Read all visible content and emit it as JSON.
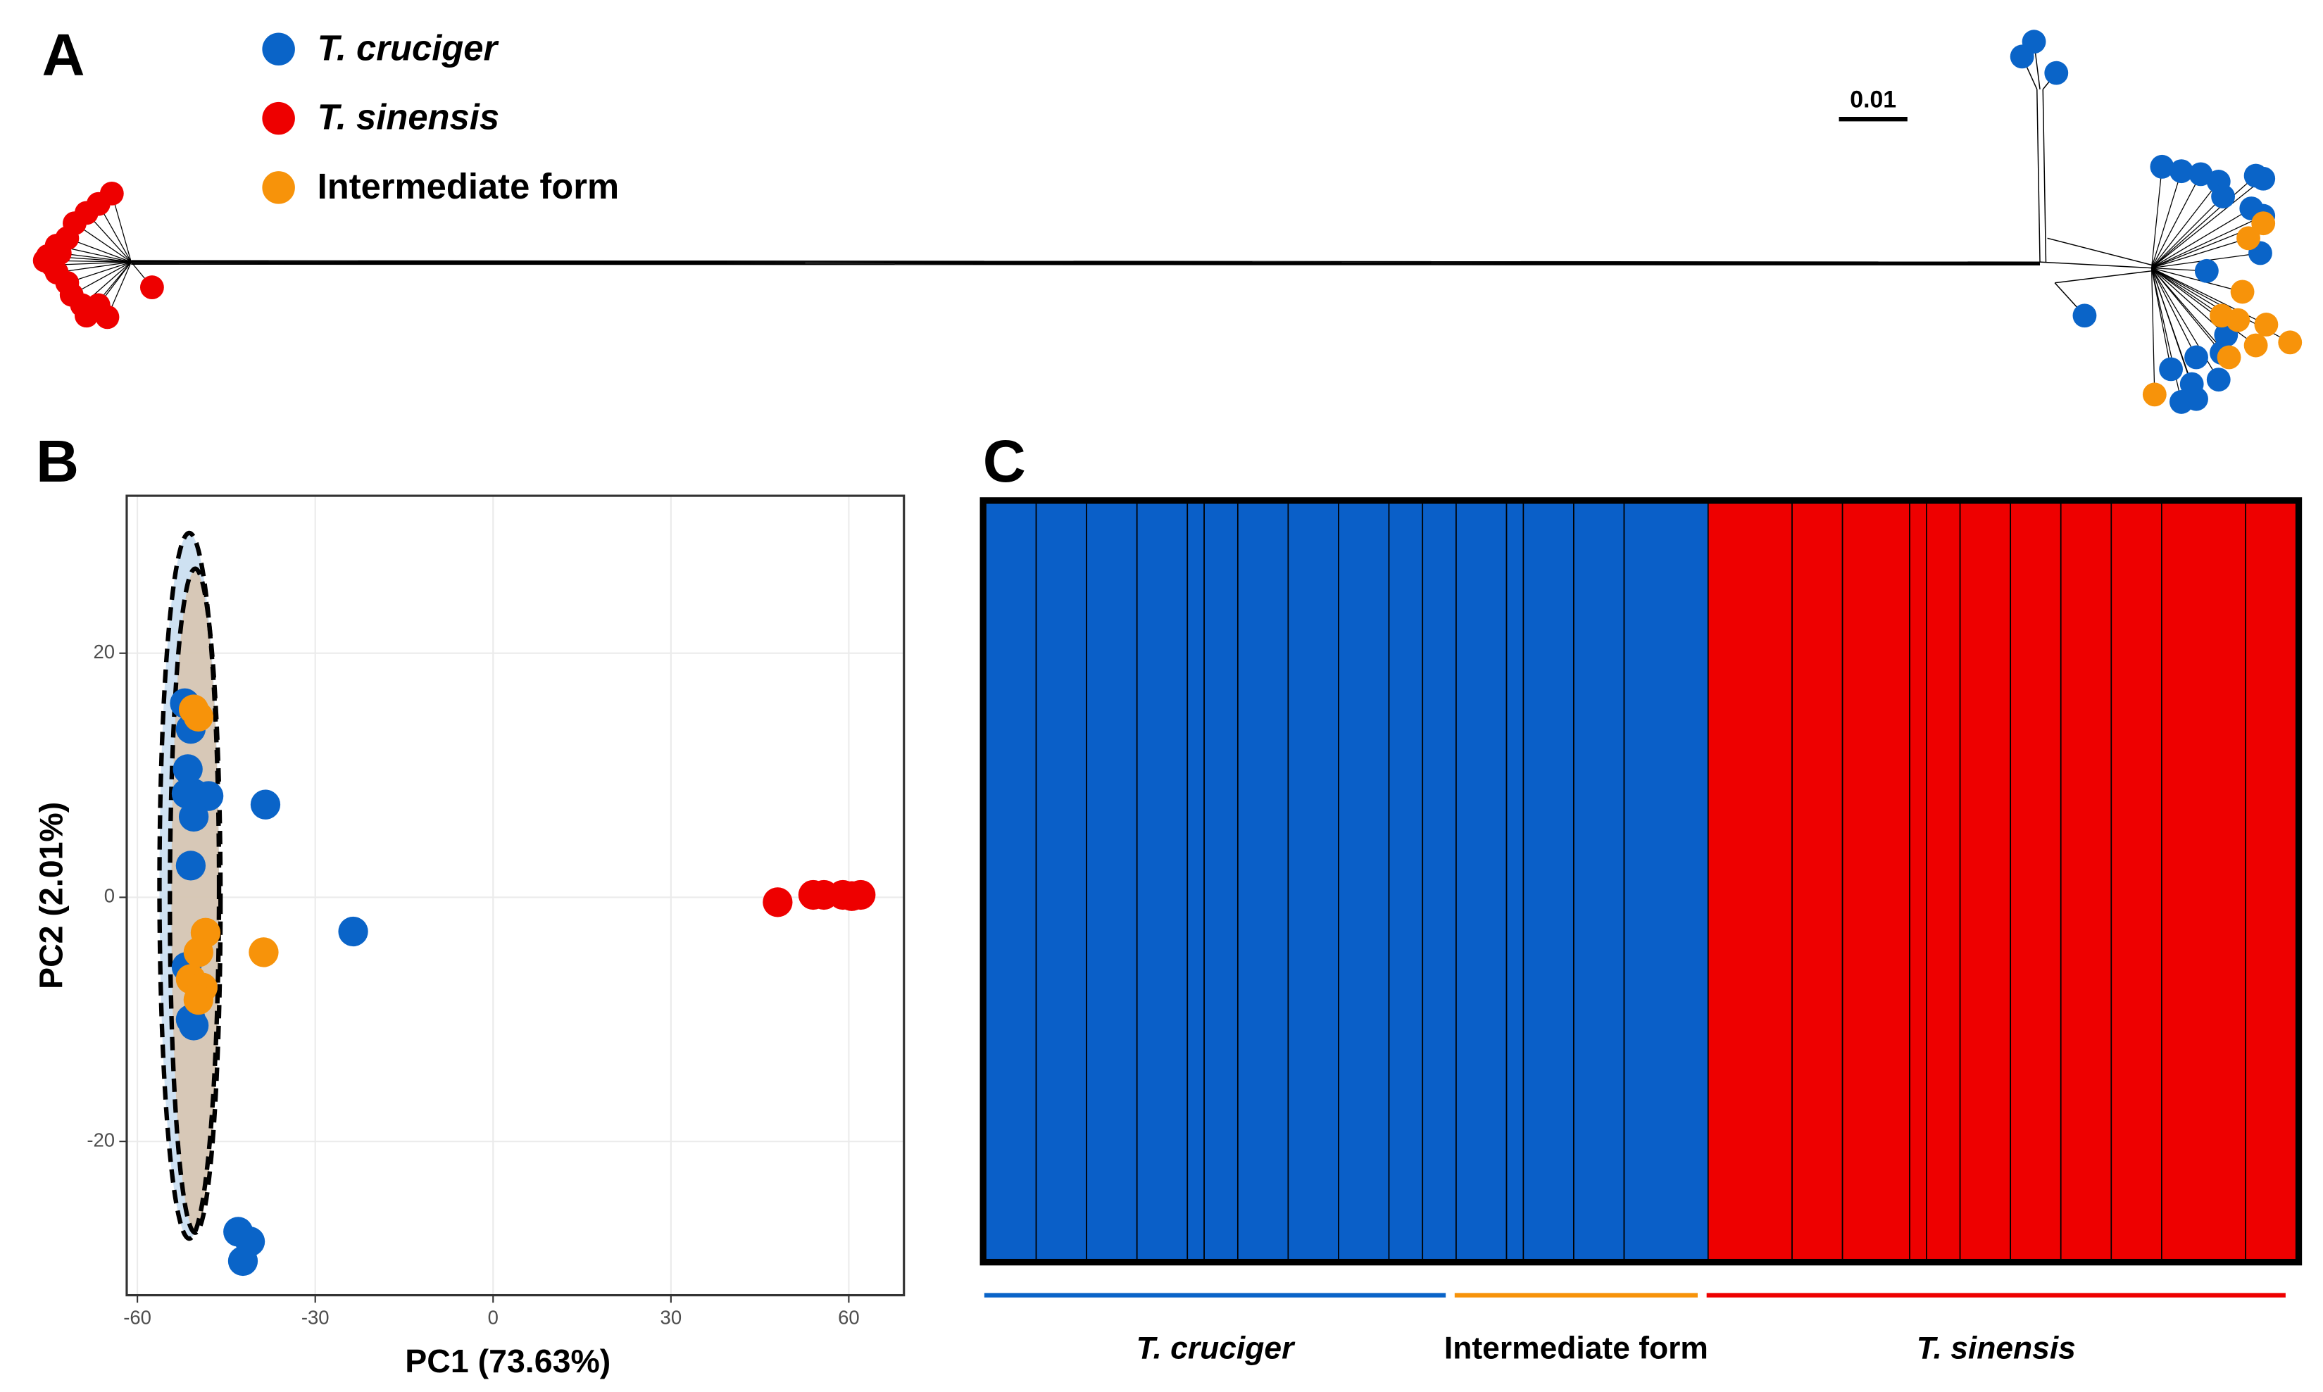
{
  "chart_data": [
    {
      "type": "tree",
      "panel": "A",
      "scale_label": "0.01",
      "series": [
        {
          "name": "T. cruciger",
          "color": "#0a64c8",
          "italic": true
        },
        {
          "name": "T. sinensis",
          "color": "#ee0000",
          "italic": true
        },
        {
          "name": "Intermediate form",
          "color": "#f7930a",
          "italic": false
        }
      ]
    },
    {
      "type": "scatter",
      "panel": "B",
      "x_label": "PC1 (73.63%)",
      "y_label": "PC2 (2.01%)",
      "xlim": [
        -61.8,
        69.3
      ],
      "ylim": [
        -32.6,
        32.9
      ],
      "xticks": [
        -60,
        -30,
        0,
        30,
        60
      ],
      "yticks": [
        -20,
        0,
        20
      ],
      "grid": true,
      "series": [
        {
          "color": "#0a64c8",
          "x": [
            -52,
            -51,
            -51.5,
            -50.5,
            -48,
            -51.7,
            -50.5,
            -51,
            -38.4,
            -23.6,
            -51.7,
            -51,
            -50.5,
            -43,
            -41,
            -42.2
          ],
          "y": [
            15.9,
            13.8,
            10.5,
            8.5,
            8.3,
            8.5,
            6.6,
            2.6,
            7.6,
            -2.8,
            -5.7,
            -10,
            -10.5,
            -27.4,
            -28.2,
            -29.8
          ]
        },
        {
          "color": "#ee0000",
          "x": [
            48,
            54,
            55.8,
            59,
            60.5,
            62
          ],
          "y": [
            -0.4,
            0.2,
            0.2,
            0.2,
            0.1,
            0.2
          ]
        },
        {
          "color": "#f7930a",
          "x": [
            -50.5,
            -49.7,
            -48.5,
            -49.7,
            -51,
            -49,
            -49.7,
            -38.7
          ],
          "y": [
            15.4,
            14.8,
            -2.9,
            -4.5,
            -6.7,
            -7.4,
            -8.4,
            -4.5
          ]
        }
      ]
    },
    {
      "type": "structure",
      "panel": "C",
      "colors": [
        "#0a5fc8",
        "#ee0000"
      ],
      "values": [
        1,
        1,
        1,
        1,
        1,
        1,
        1,
        1,
        1,
        1,
        1,
        1,
        1,
        1,
        1,
        1,
        0,
        0,
        0,
        0,
        0,
        0,
        0,
        0,
        0,
        0,
        0
      ],
      "sizes": [
        3,
        3,
        3,
        3,
        1,
        2,
        3,
        3,
        3,
        2,
        2,
        3,
        1,
        3,
        3,
        5,
        5,
        3,
        4,
        1,
        2,
        3,
        3,
        3,
        3,
        5,
        3
      ],
      "groups": [
        {
          "name": "T. cruciger",
          "color": "#0a64c8",
          "italic": true,
          "n": 28
        },
        {
          "name": "Intermediate form",
          "color": "#f7930a",
          "italic": false,
          "n": 15
        },
        {
          "name": "T. sinensis",
          "color": "#ee0000",
          "italic": true,
          "n": 35
        }
      ]
    }
  ]
}
